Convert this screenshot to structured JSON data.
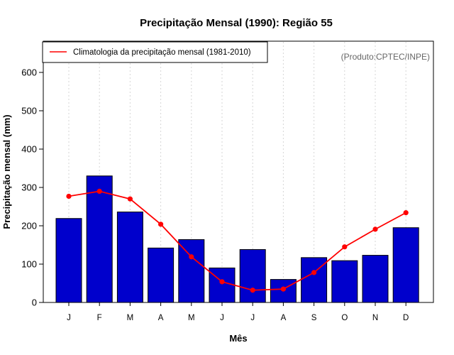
{
  "chart_data": {
    "type": "bar",
    "title": "Precipitação Mensal (1990): Região 55",
    "xlabel": "Mês",
    "ylabel": "Precipitação mensal (mm)",
    "ylim": [
      0,
      680
    ],
    "yticks": [
      0,
      100,
      200,
      300,
      400,
      500,
      600
    ],
    "grid": "vertical dotted",
    "legend_position": "top-left",
    "annotation": "(Produto:CPTEC/INPE)",
    "categories": [
      "J",
      "F",
      "M",
      "A",
      "M",
      "J",
      "J",
      "A",
      "S",
      "O",
      "N",
      "D"
    ],
    "series": [
      {
        "name": "Precipitação mensal (1990)",
        "type": "bar",
        "color": "#0000cc",
        "values": [
          219,
          330,
          236,
          142,
          164,
          90,
          138,
          60,
          117,
          109,
          123,
          195
        ]
      },
      {
        "name": "Climatologia da precipitação mensal (1981-2010)",
        "type": "line",
        "color": "#ff0000",
        "values": [
          277,
          290,
          270,
          204,
          119,
          54,
          32,
          35,
          78,
          145,
          191,
          234
        ]
      }
    ]
  }
}
